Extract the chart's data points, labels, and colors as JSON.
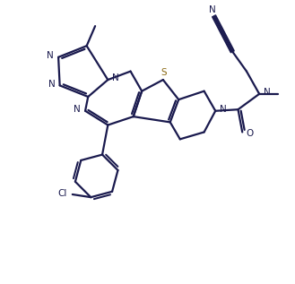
{
  "bg_color": "#ffffff",
  "line_color": "#1a1a4e",
  "sulfur_color": "#8B6914",
  "line_width": 1.6,
  "figsize": [
    3.29,
    3.17
  ],
  "dpi": 100,
  "xlim": [
    0,
    10
  ],
  "ylim": [
    0,
    10
  ]
}
